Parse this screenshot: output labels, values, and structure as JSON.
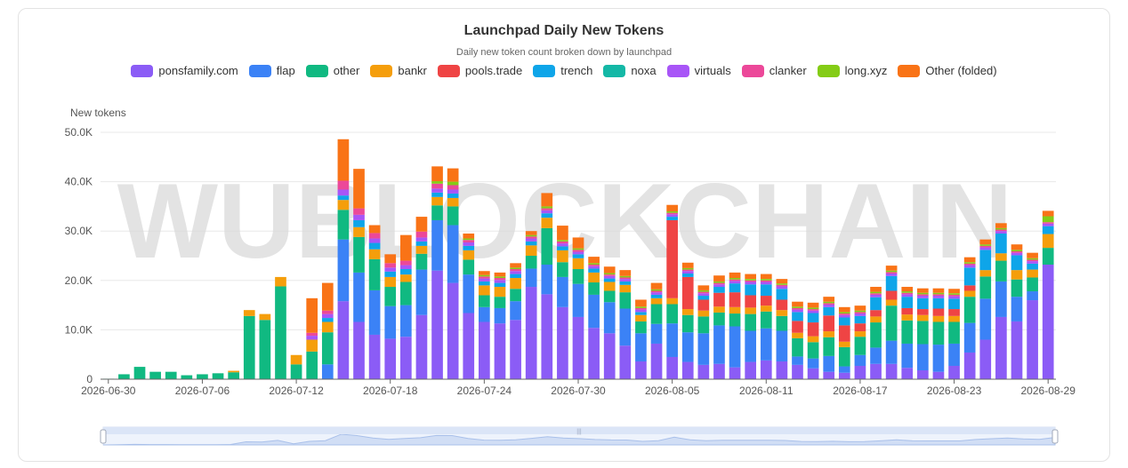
{
  "chart_data": {
    "type": "bar",
    "stacked": true,
    "title": "Launchpad Daily New Tokens",
    "subtitle": "Daily new token count broken down by launchpad",
    "ylabel": "New tokens",
    "ylim": [
      0,
      50000
    ],
    "yticks": [
      "0",
      "10.0K",
      "20.0K",
      "30.0K",
      "40.0K",
      "50.0K"
    ],
    "xticks": [
      "2026-06-30",
      "2026-07-06",
      "2026-07-12",
      "2026-07-18",
      "2026-07-24",
      "2026-07-30",
      "2026-08-05",
      "2026-08-11",
      "2026-08-17",
      "2026-08-23",
      "2026-08-29"
    ],
    "grid": true,
    "legend_position": "top",
    "watermark": "WUBLOCKCHAIN",
    "x": [
      "2026-06-30",
      "2026-07-01",
      "2026-07-02",
      "2026-07-03",
      "2026-07-04",
      "2026-07-05",
      "2026-07-06",
      "2026-07-07",
      "2026-07-08",
      "2026-07-09",
      "2026-07-10",
      "2026-07-11",
      "2026-07-12",
      "2026-07-13",
      "2026-07-14",
      "2026-07-15",
      "2026-07-16",
      "2026-07-17",
      "2026-07-18",
      "2026-07-19",
      "2026-07-20",
      "2026-07-21",
      "2026-07-22",
      "2026-07-23",
      "2026-07-24",
      "2026-07-25",
      "2026-07-26",
      "2026-07-27",
      "2026-07-28",
      "2026-07-29",
      "2026-07-30",
      "2026-07-31",
      "2026-08-01",
      "2026-08-02",
      "2026-08-03",
      "2026-08-04",
      "2026-08-05",
      "2026-08-06",
      "2026-08-07",
      "2026-08-08",
      "2026-08-09",
      "2026-08-10",
      "2026-08-11",
      "2026-08-12",
      "2026-08-13",
      "2026-08-14",
      "2026-08-15",
      "2026-08-16",
      "2026-08-17",
      "2026-08-18",
      "2026-08-19",
      "2026-08-20",
      "2026-08-21",
      "2026-08-22",
      "2026-08-23",
      "2026-08-24",
      "2026-08-25",
      "2026-08-26",
      "2026-08-27",
      "2026-08-28",
      "2026-08-29"
    ],
    "series": [
      {
        "name": "ponsfamily.com",
        "color": "#8b5cf6",
        "values": [
          0,
          0,
          0,
          0,
          0,
          0,
          0,
          0,
          0,
          0,
          0,
          0,
          0,
          0,
          0,
          15800,
          11600,
          9000,
          8200,
          8600,
          13000,
          22000,
          19500,
          13400,
          11600,
          11300,
          12000,
          18700,
          17200,
          14600,
          12600,
          10400,
          9300,
          6800,
          3600,
          7200,
          4500,
          3500,
          2900,
          3100,
          2400,
          3500,
          3800,
          3600,
          2900,
          2200,
          1500,
          1300,
          2700,
          3100,
          3100,
          2300,
          1800,
          1500,
          2700,
          5400,
          8000,
          12600,
          11700,
          16000,
          23200
        ]
      },
      {
        "name": "flap",
        "color": "#3b82f6",
        "values": [
          0,
          0,
          0,
          0,
          0,
          0,
          0,
          0,
          0,
          0,
          0,
          0,
          0,
          0,
          3000,
          12500,
          10000,
          9000,
          6600,
          6400,
          9200,
          10200,
          11700,
          7800,
          3000,
          3100,
          3800,
          3700,
          6000,
          6100,
          6700,
          6700,
          6300,
          7500,
          5700,
          4000,
          6800,
          6000,
          6400,
          7800,
          8300,
          6300,
          6500,
          6200,
          1700,
          2000,
          3200,
          1300,
          2200,
          3300,
          4700,
          4900,
          5300,
          5500,
          4500,
          6000,
          8300,
          7200,
          5000,
          1800,
          0
        ]
      },
      {
        "name": "other",
        "color": "#10b981",
        "values": [
          100,
          1000,
          2500,
          1500,
          1500,
          800,
          1000,
          1200,
          1400,
          12800,
          12000,
          18800,
          3000,
          5600,
          6500,
          6000,
          7200,
          6300,
          3900,
          4700,
          3200,
          3000,
          3800,
          3000,
          2400,
          2300,
          2500,
          2600,
          7400,
          3000,
          3000,
          2500,
          2300,
          3300,
          2400,
          4000,
          3900,
          3500,
          3400,
          2600,
          2600,
          3400,
          3400,
          3000,
          3700,
          3300,
          3800,
          3900,
          3700,
          5100,
          7100,
          4700,
          4700,
          4600,
          4400,
          5300,
          4500,
          4200,
          3500,
          2800,
          3400
        ]
      },
      {
        "name": "bankr",
        "color": "#f59e0b",
        "values": [
          0,
          0,
          0,
          0,
          0,
          0,
          0,
          0,
          300,
          1200,
          1200,
          1900,
          1900,
          2400,
          2100,
          2000,
          2000,
          2000,
          2000,
          1500,
          1600,
          1700,
          1700,
          1900,
          2000,
          2000,
          2200,
          2100,
          2100,
          2400,
          2200,
          2000,
          1800,
          1500,
          1300,
          1200,
          1200,
          1200,
          1200,
          1200,
          1300,
          1300,
          1200,
          1200,
          1100,
          1200,
          1200,
          1100,
          1100,
          1200,
          1200,
          1200,
          1200,
          1200,
          1200,
          1200,
          1300,
          1500,
          1900,
          1600,
          2800
        ]
      },
      {
        "name": "pools.trade",
        "color": "#ef4444",
        "values": [
          0,
          0,
          0,
          0,
          0,
          0,
          0,
          0,
          0,
          0,
          0,
          0,
          0,
          0,
          0,
          0,
          0,
          0,
          0,
          0,
          0,
          0,
          0,
          0,
          0,
          0,
          0,
          0,
          0,
          0,
          0,
          0,
          0,
          0,
          0,
          0,
          15800,
          6500,
          2200,
          2800,
          3000,
          2500,
          2000,
          2100,
          2400,
          2800,
          3200,
          3300,
          1600,
          1300,
          1800,
          1300,
          1200,
          1500,
          1400,
          1100,
          0,
          0,
          0,
          0,
          0
        ]
      },
      {
        "name": "trench",
        "color": "#0ea5e9",
        "values": [
          0,
          0,
          0,
          0,
          0,
          0,
          0,
          0,
          0,
          0,
          0,
          0,
          0,
          0,
          800,
          900,
          1400,
          1300,
          1100,
          1100,
          900,
          900,
          900,
          900,
          800,
          800,
          800,
          800,
          900,
          800,
          800,
          800,
          700,
          700,
          600,
          700,
          700,
          700,
          800,
          1200,
          1800,
          2200,
          2300,
          2200,
          1800,
          1900,
          1700,
          1600,
          1500,
          2600,
          3000,
          2300,
          2200,
          2100,
          2100,
          3600,
          4100,
          4000,
          3000,
          1200,
          1600
        ]
      },
      {
        "name": "noxa",
        "color": "#14b8a6",
        "values": [
          0,
          0,
          0,
          0,
          0,
          0,
          0,
          0,
          0,
          0,
          0,
          0,
          0,
          0,
          0,
          0,
          0,
          0,
          0,
          0,
          0,
          0,
          0,
          0,
          0,
          0,
          0,
          0,
          0,
          0,
          0,
          0,
          0,
          0,
          0,
          0,
          0,
          0,
          0,
          0,
          0,
          0,
          0,
          0,
          0,
          0,
          0,
          0,
          0,
          0,
          0,
          0,
          0,
          0,
          0,
          0,
          0,
          0,
          0,
          0,
          0
        ]
      },
      {
        "name": "virtuals",
        "color": "#a855f7",
        "values": [
          0,
          0,
          0,
          0,
          0,
          0,
          0,
          0,
          0,
          0,
          0,
          0,
          0,
          800,
          800,
          1200,
          1100,
          900,
          800,
          800,
          800,
          800,
          800,
          700,
          600,
          600,
          600,
          600,
          600,
          600,
          500,
          500,
          500,
          500,
          500,
          500,
          500,
          500,
          500,
          500,
          500,
          500,
          500,
          500,
          500,
          500,
          500,
          500,
          500,
          500,
          500,
          500,
          500,
          500,
          500,
          500,
          500,
          500,
          500,
          500,
          500
        ]
      },
      {
        "name": "clanker",
        "color": "#ec4899",
        "values": [
          0,
          0,
          0,
          0,
          0,
          0,
          0,
          0,
          0,
          0,
          0,
          0,
          0,
          600,
          700,
          1800,
          1300,
          1100,
          900,
          900,
          1200,
          1000,
          900,
          500,
          400,
          400,
          400,
          400,
          400,
          400,
          400,
          300,
          300,
          300,
          300,
          300,
          300,
          300,
          300,
          300,
          300,
          300,
          300,
          300,
          300,
          300,
          300,
          300,
          300,
          300,
          300,
          300,
          300,
          300,
          300,
          300,
          300,
          300,
          300,
          300,
          300
        ]
      },
      {
        "name": "long.xyz",
        "color": "#84cc16",
        "values": [
          0,
          0,
          0,
          0,
          0,
          0,
          0,
          0,
          0,
          0,
          0,
          0,
          0,
          0,
          0,
          0,
          0,
          0,
          0,
          0,
          0,
          500,
          700,
          300,
          300,
          300,
          300,
          300,
          400,
          300,
          300,
          300,
          300,
          300,
          300,
          300,
          300,
          300,
          300,
          300,
          300,
          300,
          300,
          300,
          300,
          300,
          300,
          300,
          300,
          300,
          300,
          300,
          300,
          300,
          300,
          300,
          300,
          300,
          300,
          300,
          1200
        ]
      },
      {
        "name": "Other (folded)",
        "color": "#f97316",
        "values": [
          0,
          0,
          0,
          0,
          0,
          0,
          0,
          0,
          0,
          0,
          0,
          0,
          0,
          7000,
          5600,
          8400,
          8000,
          1600,
          1800,
          5200,
          3000,
          3000,
          2700,
          1000,
          800,
          800,
          900,
          800,
          2700,
          2900,
          2200,
          1300,
          1300,
          1200,
          1400,
          1300,
          1300,
          1100,
          1000,
          1200,
          1100,
          1000,
          1000,
          900,
          1000,
          1000,
          1000,
          1000,
          1000,
          1000,
          1000,
          900,
          900,
          900,
          900,
          1000,
          1000,
          1000,
          1100,
          1100,
          1100
        ]
      }
    ]
  }
}
